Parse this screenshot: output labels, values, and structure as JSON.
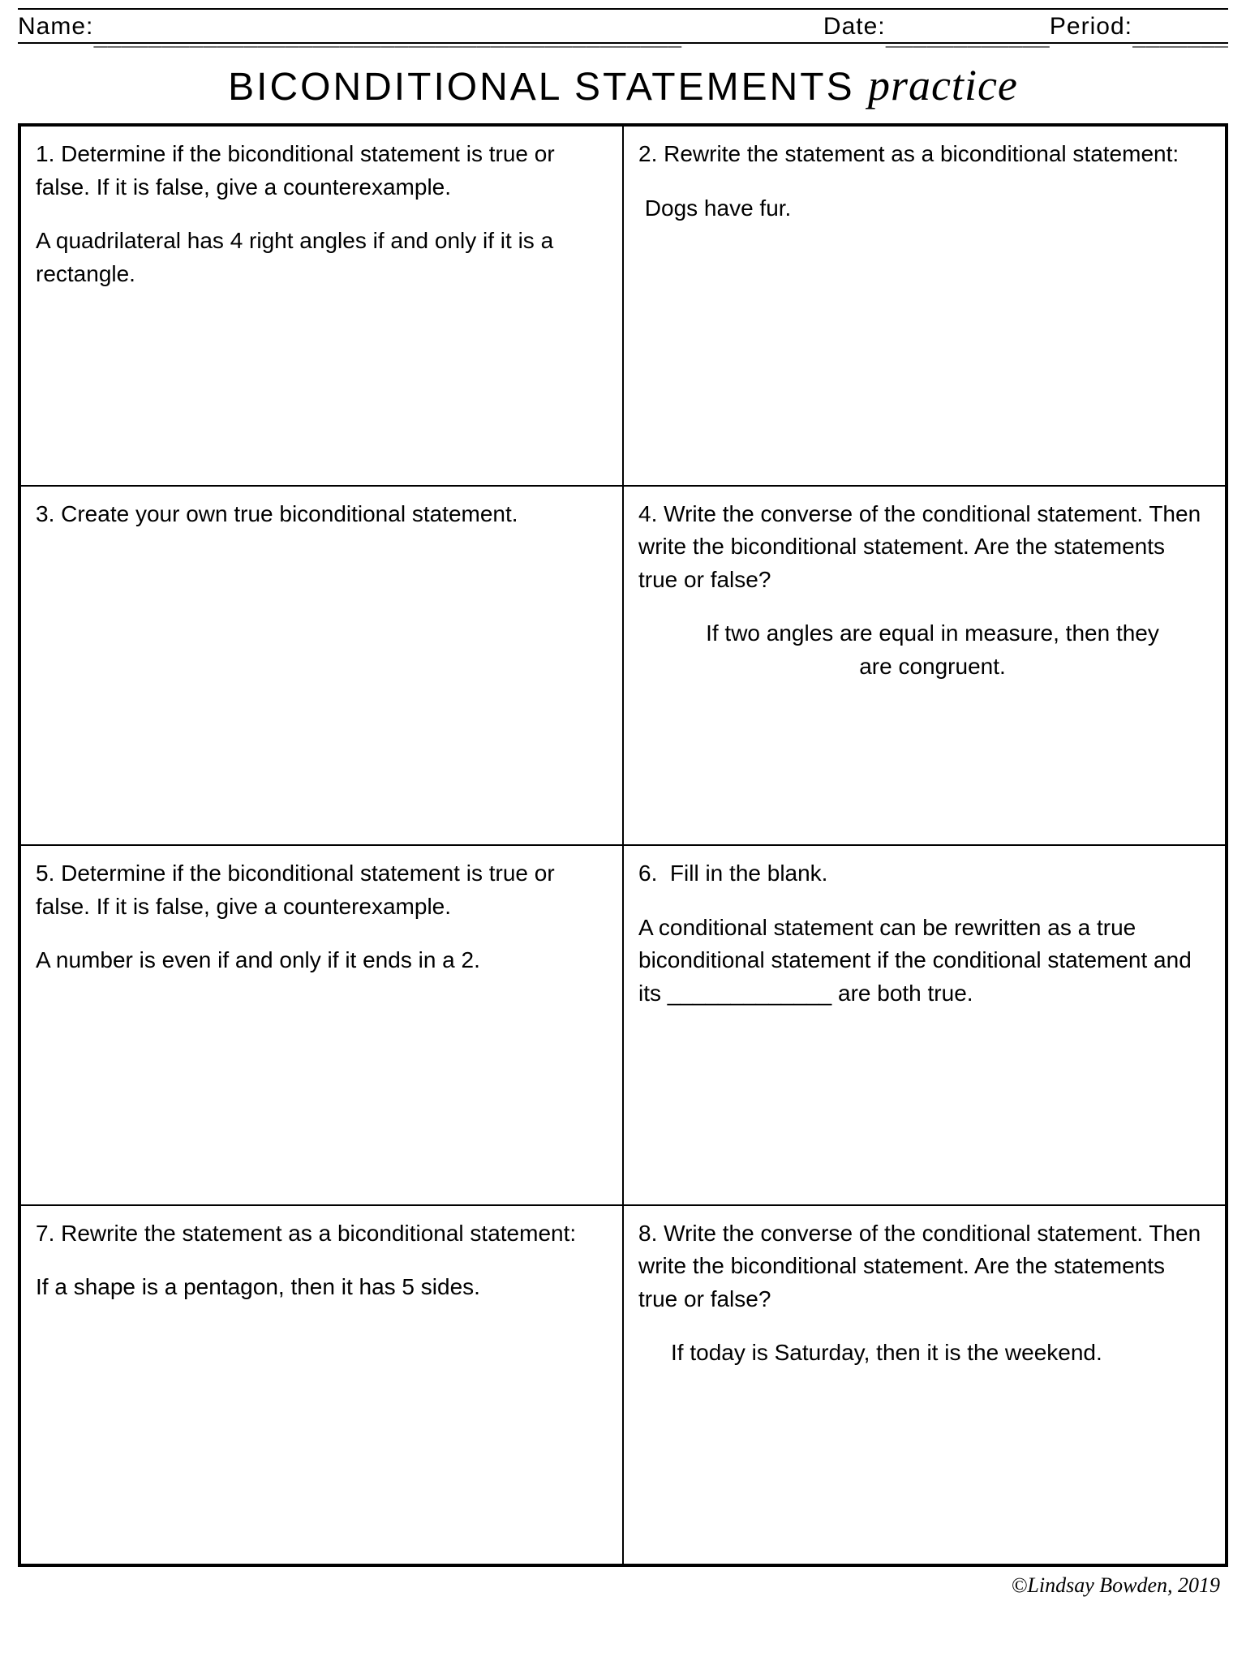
{
  "header": {
    "name_label": "Name:",
    "name_blank": "___________________________________________",
    "date_label": "Date:",
    "date_blank": "____________",
    "period_label": "Period:",
    "period_blank": "_______"
  },
  "title": {
    "main": "BICONDITIONAL STATEMENTS",
    "script": "practice"
  },
  "cells": [
    {
      "num": "1.",
      "prompt": "Determine if the biconditional statement is true or false. If it is false, give a counterexample.",
      "body": "A quadrilateral has 4 right angles if and only if it is a rectangle."
    },
    {
      "num": "2.",
      "prompt": "Rewrite the statement as a biconditional statement:",
      "body": " Dogs have fur."
    },
    {
      "num": "3.",
      "prompt": "Create your own true biconditional statement.",
      "body": ""
    },
    {
      "num": "4.",
      "prompt": "Write the converse of the conditional statement. Then write the biconditional statement. Are the statements true or false?",
      "body": "If two angles are equal in measure, then they are congruent."
    },
    {
      "num": "5.",
      "prompt": "Determine if the biconditional statement is true or false. If it is false, give a counterexample.",
      "body": "A number is even if and only if it ends in a 2."
    },
    {
      "num": "6.",
      "prompt": " Fill in the blank.",
      "body": "A conditional statement can be rewritten as a true biconditional statement if the conditional statement and its _____________ are both true."
    },
    {
      "num": "7.",
      "prompt": "Rewrite the statement as a biconditional statement:",
      "body": "If a shape is a pentagon, then it has 5 sides."
    },
    {
      "num": "8.",
      "prompt": "Write the converse of the conditional statement. Then write the biconditional statement. Are the statements true or false?",
      "body": "If today is Saturday, then it is the weekend."
    }
  ],
  "footer": "©Lindsay Bowden, 2019"
}
